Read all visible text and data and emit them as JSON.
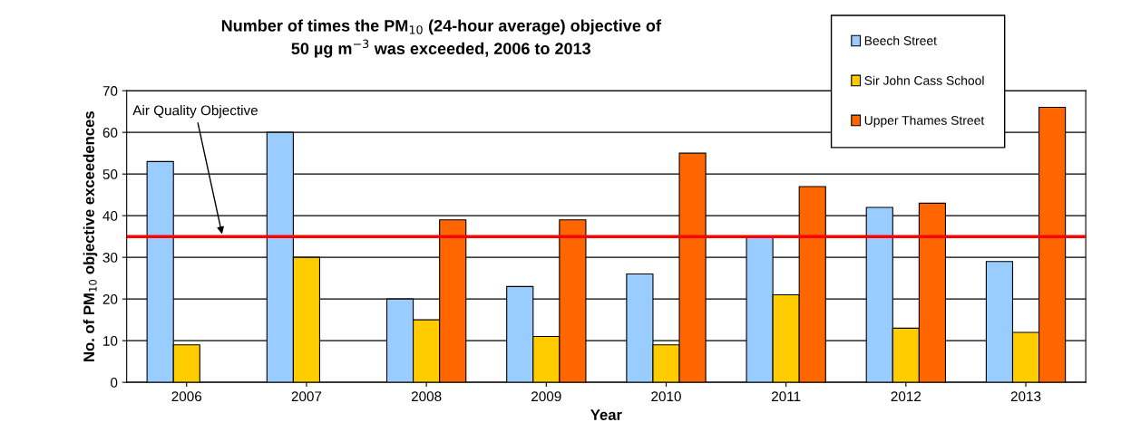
{
  "chart_data": {
    "type": "bar",
    "title": "Number of times the PM$_{10}$ (24-hour average) objective of\n50 µg m$^{−3}$ was exceeded, 2006 to 2013",
    "xlabel": "Year",
    "ylabel": "No. of PM$_{10}$ objective exceedences",
    "categories": [
      "2006",
      "2007",
      "2008",
      "2009",
      "2010",
      "2011",
      "2012",
      "2013"
    ],
    "series": [
      {
        "name": "Beech Street",
        "color": "#99ccff",
        "values": [
          53,
          60,
          20,
          23,
          26,
          35,
          42,
          29
        ]
      },
      {
        "name": "Sir John Cass School",
        "color": "#ffcc00",
        "values": [
          9,
          30,
          15,
          11,
          9,
          21,
          13,
          12
        ]
      },
      {
        "name": "Upper Thames Street",
        "color": "#ff6600",
        "values": [
          null,
          null,
          39,
          39,
          55,
          47,
          43,
          66
        ]
      }
    ],
    "ylim": [
      0,
      70
    ],
    "yticks": [
      0,
      10,
      20,
      30,
      40,
      50,
      60,
      70
    ],
    "grid": "y",
    "legend": "top right",
    "ref_lines": [
      {
        "axis": "y",
        "value": 35,
        "label": "Air Quality Objective",
        "color": "#ff0000"
      }
    ]
  }
}
